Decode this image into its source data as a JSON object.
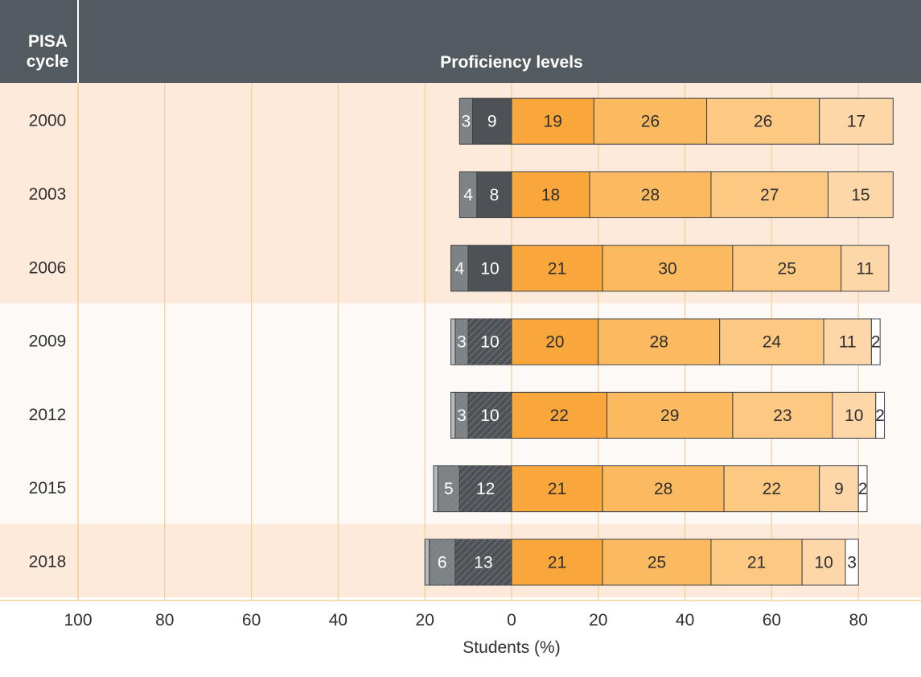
{
  "chart_data": {
    "type": "bar",
    "stacked": "diverging",
    "header": {
      "row_header": "PISA cycle",
      "title": "Proficiency levels"
    },
    "xlabel": "Students (%)",
    "x_ticks": [
      "100",
      "80",
      "60",
      "40",
      "20",
      "0",
      "20",
      "40",
      "60",
      "80"
    ],
    "xlim": [
      -100,
      90
    ],
    "categories": [
      "2000",
      "2003",
      "2006",
      "2009",
      "2012",
      "2015",
      "2018"
    ],
    "negative_segments": [
      {
        "values": [
          3,
          4,
          4,
          3,
          3,
          5,
          6
        ],
        "color": "#7d8285",
        "hatched_from_index": 3
      },
      {
        "values": [
          9,
          8,
          10,
          10,
          10,
          12,
          13
        ],
        "color": "#4e5256",
        "hatched_from_index": 3
      }
    ],
    "extra_negative_stubs": [
      {
        "row": 3,
        "value": 1
      },
      {
        "row": 4,
        "value": 1
      },
      {
        "row": 5,
        "value": 1
      },
      {
        "row": 6,
        "value": 1
      }
    ],
    "positive_series": [
      {
        "values": [
          19,
          18,
          21,
          20,
          22,
          21,
          21
        ],
        "color": "#f9a63a"
      },
      {
        "values": [
          26,
          28,
          30,
          28,
          29,
          28,
          25
        ],
        "color": "#fbba5f"
      },
      {
        "values": [
          26,
          27,
          25,
          24,
          23,
          22,
          21
        ],
        "color": "#fdc882"
      },
      {
        "values": [
          17,
          15,
          11,
          11,
          10,
          9,
          10
        ],
        "color": "#fed7a8"
      },
      {
        "values": [
          null,
          null,
          null,
          2,
          2,
          2,
          3
        ],
        "color": "#ffffff"
      }
    ],
    "row_bands": [
      {
        "rows": [
          0,
          1,
          2
        ],
        "color": "#fdeadb"
      },
      {
        "rows": [
          3,
          4,
          5
        ],
        "color": "#fdf9f7"
      },
      {
        "rows": [
          6
        ],
        "color": "#fdeadb"
      }
    ],
    "colors": {
      "header_bg": "#535b60",
      "header_text": "#ffffff",
      "grid": "#f7cf98",
      "label_light": "#ffffff",
      "label_dark": "#2f2f2f"
    },
    "grid": true
  }
}
